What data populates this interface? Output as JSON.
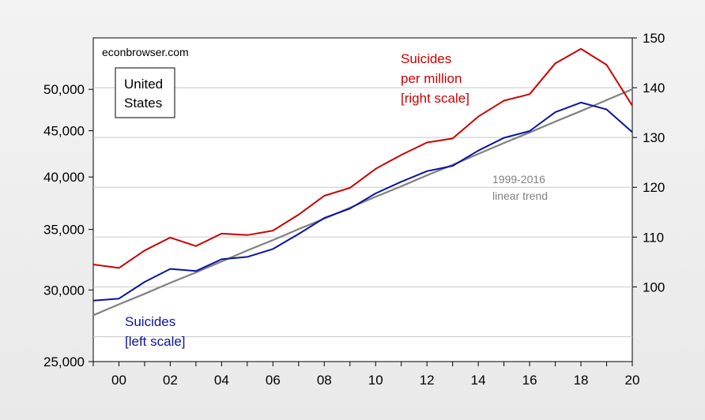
{
  "chart_data": {
    "type": "line",
    "x": [
      1999,
      2000,
      2001,
      2002,
      2003,
      2004,
      2005,
      2006,
      2007,
      2008,
      2009,
      2010,
      2011,
      2012,
      2013,
      2014,
      2015,
      2016,
      2017,
      2018,
      2019,
      2020
    ],
    "x_tick_values": [
      2000,
      2002,
      2004,
      2006,
      2008,
      2010,
      2012,
      2014,
      2016,
      2018,
      2020
    ],
    "x_tick_labels": [
      "00",
      "02",
      "04",
      "06",
      "08",
      "10",
      "12",
      "14",
      "16",
      "18",
      "20"
    ],
    "left_axis": {
      "scale": "log",
      "range": [
        25000,
        57000
      ],
      "tick_values": [
        25000,
        30000,
        35000,
        40000,
        45000,
        50000
      ],
      "tick_labels": [
        "25,000",
        "30,000",
        "35,000",
        "40,000",
        "45,000",
        "50,000"
      ]
    },
    "right_axis": {
      "scale": "linear",
      "range": [
        85,
        150
      ],
      "tick_values": [
        100,
        110,
        120,
        130,
        140,
        150
      ],
      "tick_labels": [
        "100",
        "110",
        "120",
        "130",
        "140",
        "150"
      ]
    },
    "series": [
      {
        "name": "Suicides per million [right scale]",
        "axis": "right",
        "color": "#cc0000",
        "values": [
          104.5,
          103.8,
          107.3,
          109.9,
          108.2,
          110.7,
          110.4,
          111.3,
          114.5,
          118.3,
          119.9,
          123.7,
          126.5,
          129.0,
          129.8,
          134.2,
          137.4,
          138.7,
          144.9,
          147.8,
          144.6,
          136.4
        ]
      },
      {
        "name": "Suicides [left scale]",
        "axis": "left",
        "color": "#0a14a0",
        "values": [
          29199,
          29350,
          30622,
          31655,
          31484,
          32439,
          32637,
          33300,
          34598,
          36035,
          36909,
          38364,
          39518,
          40600,
          41149,
          42773,
          44193,
          44965,
          47173,
          48344,
          47511,
          44834
        ]
      },
      {
        "name": "1999-2016 linear trend",
        "axis": "right",
        "color": "#808080",
        "values": [
          94.3,
          96.5,
          98.6,
          100.8,
          102.9,
          105.1,
          107.3,
          109.4,
          111.6,
          113.7,
          115.9,
          118.1,
          120.2,
          122.4,
          124.5,
          126.7,
          128.9,
          131.0,
          133.2,
          135.3,
          137.5,
          139.7
        ]
      }
    ],
    "annotations": {
      "source": "econbrowser.com",
      "country_lines": [
        "United",
        "States"
      ],
      "red_label_lines": [
        "Suicides",
        "per million",
        "[right scale]"
      ],
      "blue_label_lines": [
        "Suicides",
        "[left scale]"
      ],
      "trend_label_lines": [
        "1999-2016",
        "linear trend"
      ]
    },
    "grid": true,
    "gridline_values_right": [
      90,
      100,
      110,
      120,
      130,
      140
    ],
    "legend": "none"
  }
}
